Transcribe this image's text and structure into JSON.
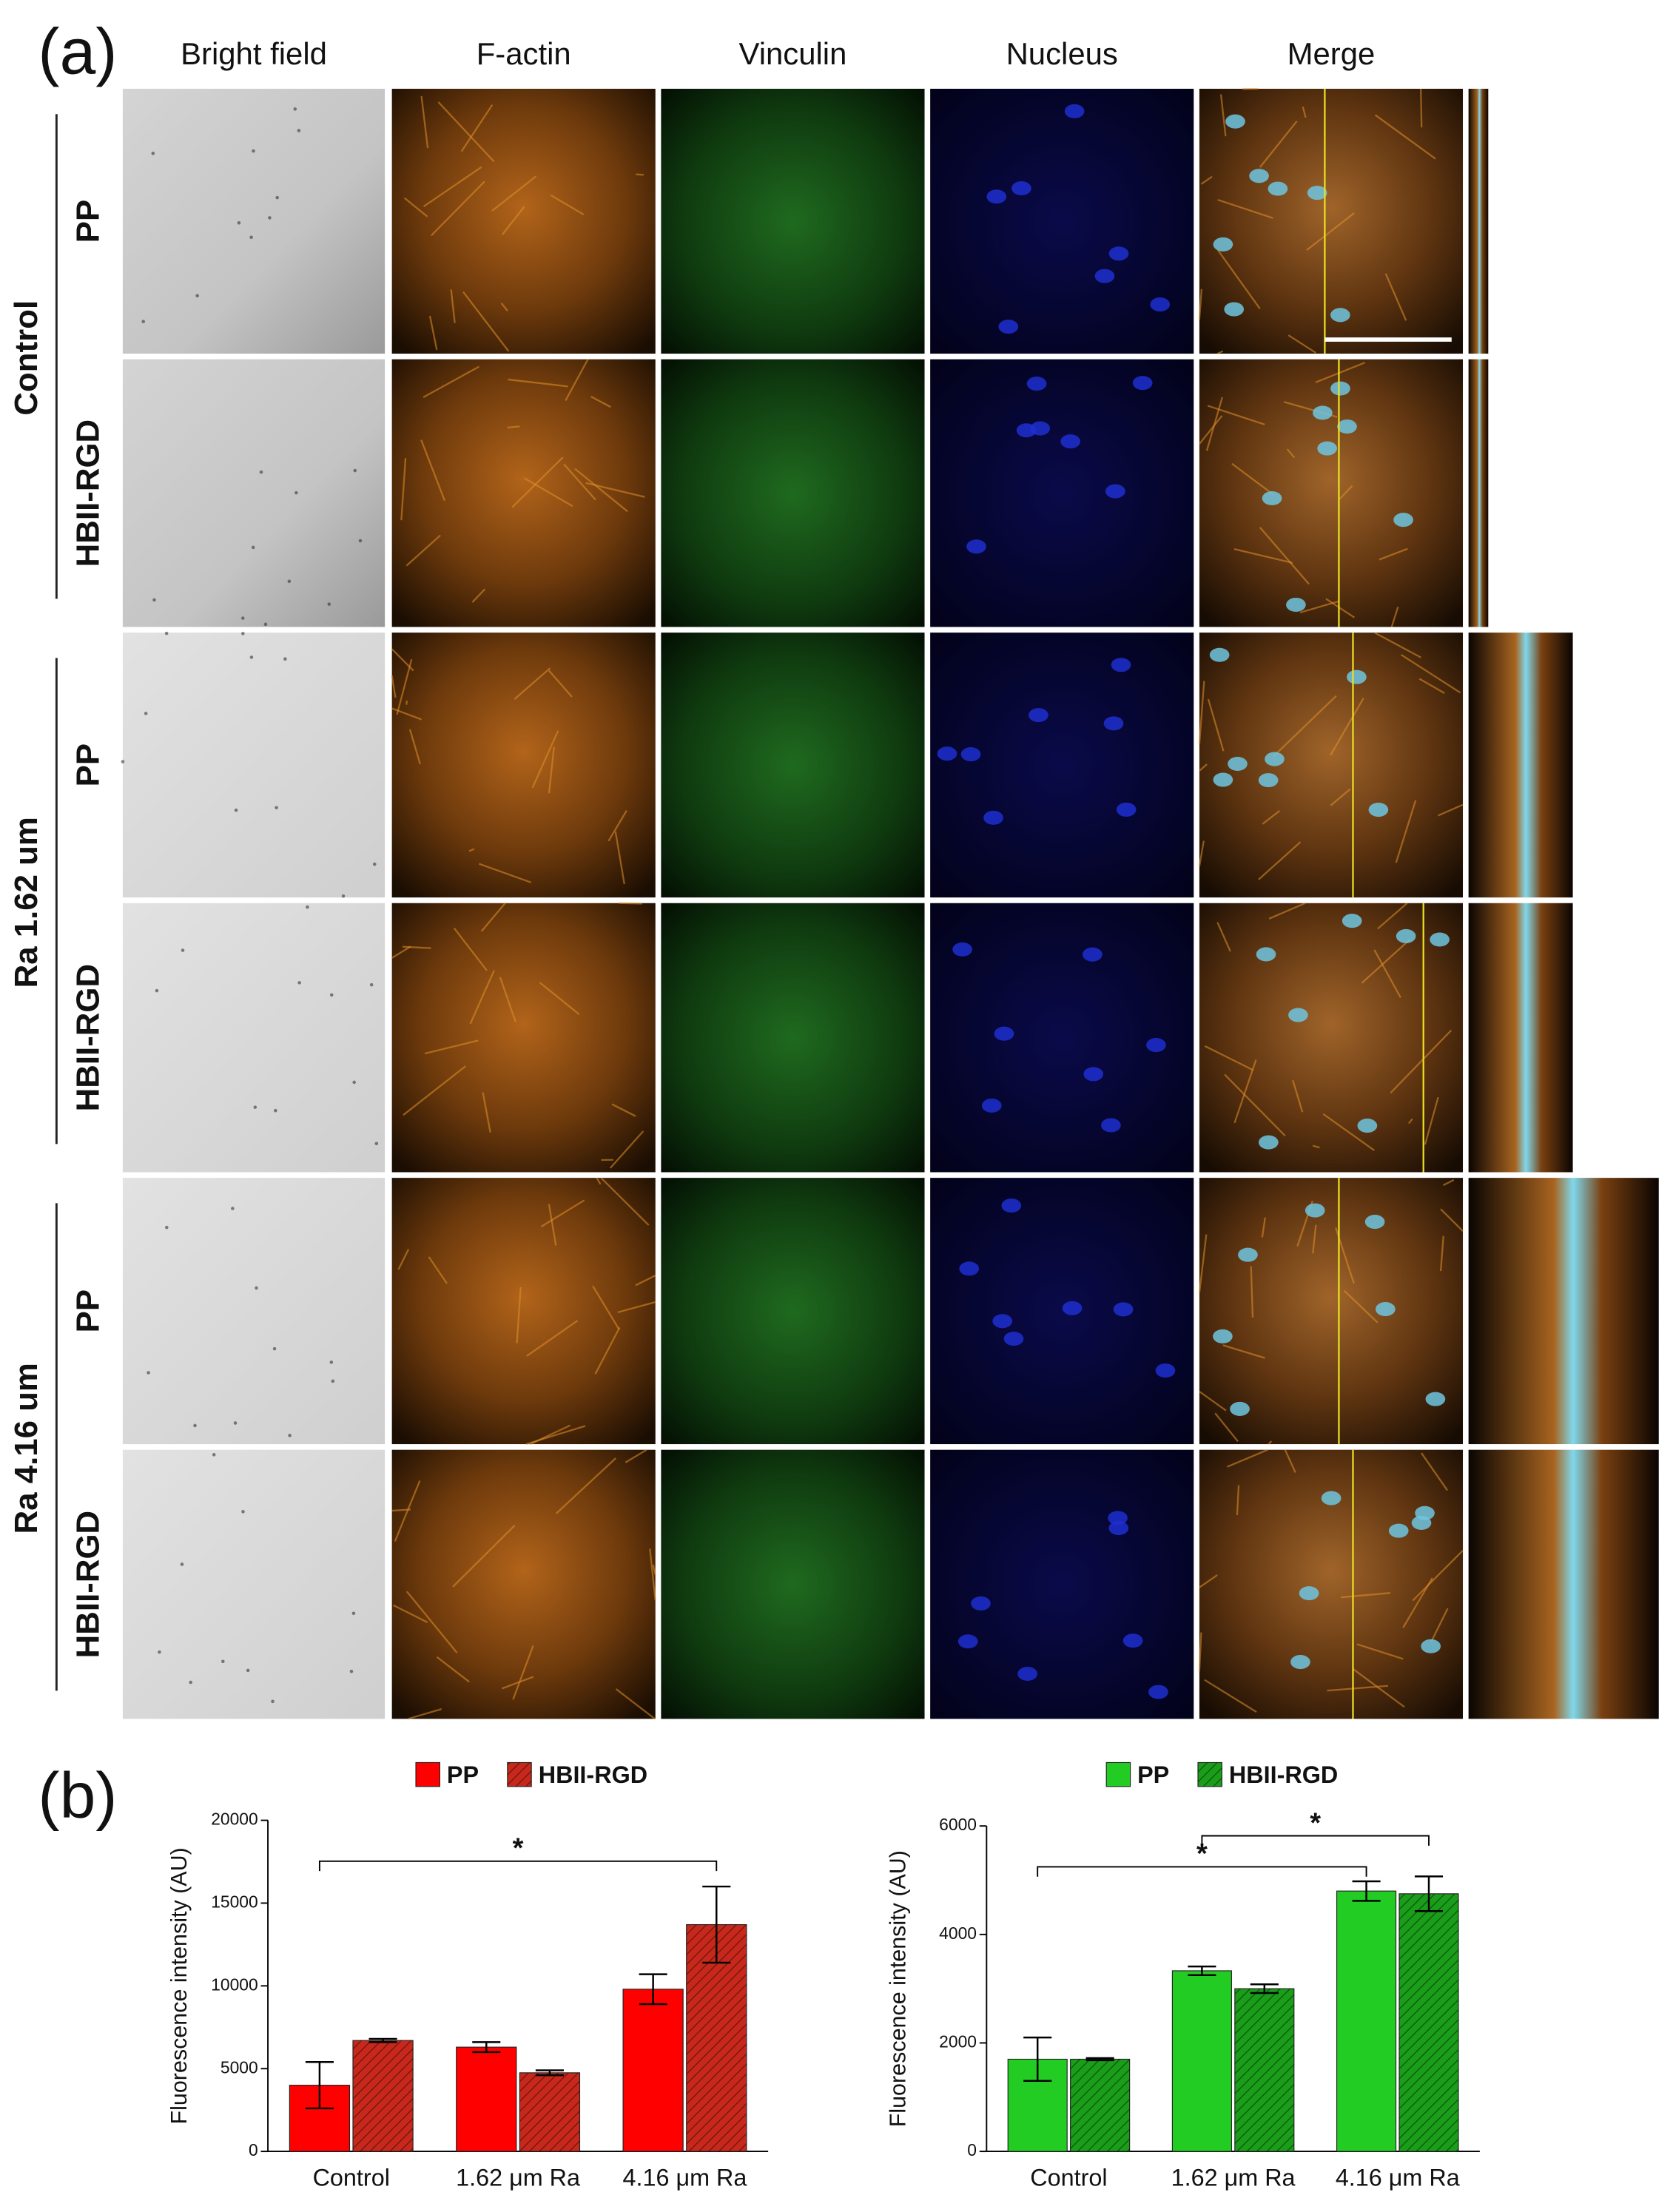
{
  "panel_a": {
    "label": "(a)",
    "columns": [
      "Bright field",
      "F-actin",
      "Vinculin",
      "Nucleus",
      "Merge"
    ],
    "groups": [
      {
        "label": "Control",
        "rows": [
          "PP",
          "HBII-RGD"
        ]
      },
      {
        "label": "Ra 1.62 um",
        "rows": [
          "PP",
          "HBII-RGD"
        ]
      },
      {
        "label": "Ra 4.16 um",
        "rows": [
          "PP",
          "HBII-RGD"
        ]
      }
    ]
  },
  "panel_b": {
    "label": "(b)"
  },
  "chart_data": [
    {
      "type": "bar",
      "ylabel": "Fluorescence intensity (AU)",
      "categories": [
        "Control",
        "1.62 μm Ra",
        "4.16 μm Ra"
      ],
      "series": [
        {
          "name": "PP",
          "color": "#ff0000",
          "hatch": false,
          "values": [
            4000,
            6300,
            9800
          ],
          "errors": [
            1400,
            300,
            900
          ]
        },
        {
          "name": "HBII-RGD",
          "color": "#c8281c",
          "hatch": true,
          "values": [
            6700,
            4750,
            13700
          ],
          "errors": [
            100,
            150,
            2300
          ]
        }
      ],
      "ylim": [
        0,
        20000
      ],
      "yticks": [
        0,
        5000,
        10000,
        15000,
        20000
      ],
      "annotations": [
        "*"
      ]
    },
    {
      "type": "bar",
      "ylabel": "Fluorescence intensity (AU)",
      "categories": [
        "Control",
        "1.62 μm Ra",
        "4.16 μm Ra"
      ],
      "series": [
        {
          "name": "PP",
          "color": "#22cc22",
          "hatch": false,
          "values": [
            1700,
            3330,
            4800
          ],
          "errors": [
            400,
            80,
            180
          ]
        },
        {
          "name": "HBII-RGD",
          "color": "#1a9e1a",
          "hatch": true,
          "values": [
            1700,
            3000,
            4750
          ],
          "errors": [
            20,
            80,
            320
          ]
        }
      ],
      "ylim": [
        0,
        6000
      ],
      "yticks": [
        0,
        2000,
        4000,
        6000
      ],
      "annotations": [
        "*",
        "*"
      ]
    }
  ]
}
